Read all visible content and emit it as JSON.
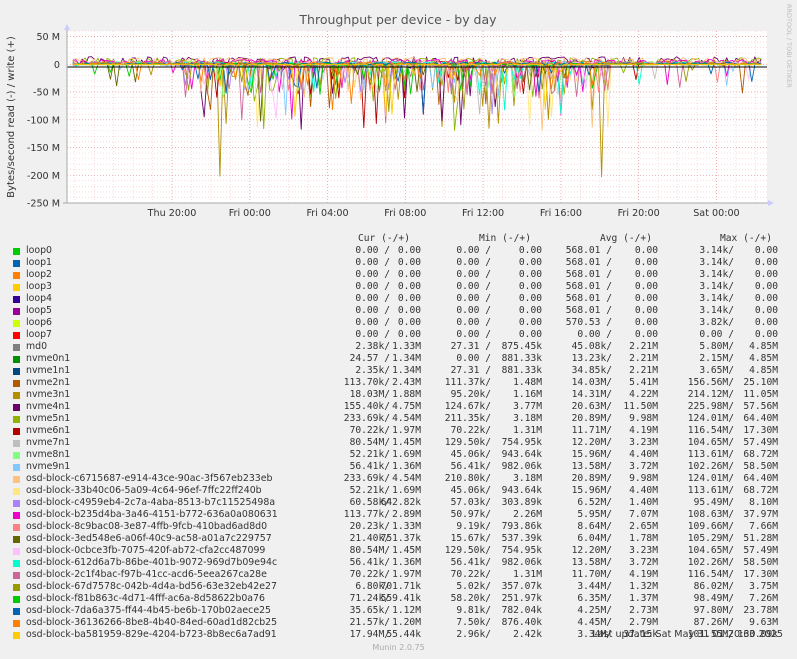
{
  "chart_data": {
    "type": "line",
    "title": "Throughput per device - by day",
    "ylabel": "Bytes/second read (-) / write (+)",
    "ylim": [
      -250000000,
      60000000
    ],
    "yticks": [
      {
        "v": 50000000,
        "label": "50 M"
      },
      {
        "v": 0,
        "label": "0"
      },
      {
        "v": -50000000,
        "label": "-50 M"
      },
      {
        "v": -100000000,
        "label": "-100 M"
      },
      {
        "v": -150000000,
        "label": "-150 M"
      },
      {
        "v": -200000000,
        "label": "-200 M"
      },
      {
        "v": -250000000,
        "label": "-250 M"
      }
    ],
    "xrange_hours": [
      -5.4,
      30.6
    ],
    "xticks": [
      {
        "h": 0,
        "label": "Thu 20:00"
      },
      {
        "h": 4,
        "label": "Fri 00:00"
      },
      {
        "h": 8,
        "label": "Fri 04:00"
      },
      {
        "h": 12,
        "label": "Fri 08:00"
      },
      {
        "h": 16,
        "label": "Fri 12:00"
      },
      {
        "h": 20,
        "label": "Fri 16:00"
      },
      {
        "h": 24,
        "label": "Fri 20:00"
      },
      {
        "h": 28,
        "label": "Sat 00:00"
      }
    ],
    "grid": true,
    "legend_position": "bottom",
    "legend_headers": {
      "cur": "Cur (-/+)",
      "min": "Min (-/+)",
      "avg": "Avg (-/+)",
      "max": "Max (-/+)"
    },
    "series": [
      {
        "name": "loop0",
        "color": "#00cc00",
        "cur": [
          "0.00 /",
          "0.00"
        ],
        "min": [
          "0.00 /",
          "0.00"
        ],
        "avg": [
          "568.01 /",
          "0.00"
        ],
        "max": [
          "3.14k/",
          "0.00"
        ]
      },
      {
        "name": "loop1",
        "color": "#0066b3",
        "cur": [
          "0.00 /",
          "0.00"
        ],
        "min": [
          "0.00 /",
          "0.00"
        ],
        "avg": [
          "568.01 /",
          "0.00"
        ],
        "max": [
          "3.14k/",
          "0.00"
        ]
      },
      {
        "name": "loop2",
        "color": "#ff8000",
        "cur": [
          "0.00 /",
          "0.00"
        ],
        "min": [
          "0.00 /",
          "0.00"
        ],
        "avg": [
          "568.01 /",
          "0.00"
        ],
        "max": [
          "3.14k/",
          "0.00"
        ]
      },
      {
        "name": "loop3",
        "color": "#ffcc00",
        "cur": [
          "0.00 /",
          "0.00"
        ],
        "min": [
          "0.00 /",
          "0.00"
        ],
        "avg": [
          "568.01 /",
          "0.00"
        ],
        "max": [
          "3.14k/",
          "0.00"
        ]
      },
      {
        "name": "loop4",
        "color": "#330099",
        "cur": [
          "0.00 /",
          "0.00"
        ],
        "min": [
          "0.00 /",
          "0.00"
        ],
        "avg": [
          "568.01 /",
          "0.00"
        ],
        "max": [
          "3.14k/",
          "0.00"
        ]
      },
      {
        "name": "loop5",
        "color": "#990099",
        "cur": [
          "0.00 /",
          "0.00"
        ],
        "min": [
          "0.00 /",
          "0.00"
        ],
        "avg": [
          "568.01 /",
          "0.00"
        ],
        "max": [
          "3.14k/",
          "0.00"
        ]
      },
      {
        "name": "loop6",
        "color": "#ccff00",
        "cur": [
          "0.00 /",
          "0.00"
        ],
        "min": [
          "0.00 /",
          "0.00"
        ],
        "avg": [
          "570.53 /",
          "0.00"
        ],
        "max": [
          "3.82k/",
          "0.00"
        ]
      },
      {
        "name": "loop7",
        "color": "#ff0000",
        "cur": [
          "0.00 /",
          "0.00"
        ],
        "min": [
          "0.00 /",
          "0.00"
        ],
        "avg": [
          "0.00 /",
          "0.00"
        ],
        "max": [
          "0.00 /",
          "0.00"
        ]
      },
      {
        "name": "md0",
        "color": "#808080",
        "cur": [
          "2.38k/",
          "1.33M"
        ],
        "min": [
          "27.31 /",
          "875.45k"
        ],
        "avg": [
          "45.08k/",
          "2.21M"
        ],
        "max": [
          "5.80M/",
          "4.85M"
        ]
      },
      {
        "name": "nvme0n1",
        "color": "#008f00",
        "cur": [
          "24.57 /",
          "1.34M"
        ],
        "min": [
          "0.00 /",
          "881.33k"
        ],
        "avg": [
          "13.23k/",
          "2.21M"
        ],
        "max": [
          "2.15M/",
          "4.85M"
        ]
      },
      {
        "name": "nvme1n1",
        "color": "#00487d",
        "cur": [
          "2.35k/",
          "1.34M"
        ],
        "min": [
          "27.31 /",
          "881.33k"
        ],
        "avg": [
          "34.85k/",
          "2.21M"
        ],
        "max": [
          "3.65M/",
          "4.85M"
        ]
      },
      {
        "name": "nvme2n1",
        "color": "#b35a00",
        "cur": [
          "113.70k/",
          "2.43M"
        ],
        "min": [
          "111.37k/",
          "1.48M"
        ],
        "avg": [
          "14.03M/",
          "5.41M"
        ],
        "max": [
          "156.56M/",
          "25.10M"
        ]
      },
      {
        "name": "nvme3n1",
        "color": "#b38f00",
        "cur": [
          "18.03M/",
          "1.88M"
        ],
        "min": [
          "95.20k/",
          "1.16M"
        ],
        "avg": [
          "14.31M/",
          "4.22M"
        ],
        "max": [
          "214.12M/",
          "11.05M"
        ]
      },
      {
        "name": "nvme4n1",
        "color": "#6b006b",
        "cur": [
          "155.40k/",
          "4.75M"
        ],
        "min": [
          "124.67k/",
          "3.77M"
        ],
        "avg": [
          "20.63M/",
          "11.50M"
        ],
        "max": [
          "225.98M/",
          "57.56M"
        ]
      },
      {
        "name": "nvme5n1",
        "color": "#8fb300",
        "cur": [
          "233.69k/",
          "4.54M"
        ],
        "min": [
          "211.35k/",
          "3.18M"
        ],
        "avg": [
          "20.89M/",
          "9.98M"
        ],
        "max": [
          "124.01M/",
          "64.40M"
        ]
      },
      {
        "name": "nvme6n1",
        "color": "#b30000",
        "cur": [
          "70.22k/",
          "1.97M"
        ],
        "min": [
          "70.22k/",
          "1.31M"
        ],
        "avg": [
          "11.71M/",
          "4.19M"
        ],
        "max": [
          "116.54M/",
          "17.30M"
        ]
      },
      {
        "name": "nvme7n1",
        "color": "#bebebe",
        "cur": [
          "80.54M/",
          "1.45M"
        ],
        "min": [
          "129.50k/",
          "754.95k"
        ],
        "avg": [
          "12.20M/",
          "3.23M"
        ],
        "max": [
          "104.65M/",
          "57.49M"
        ]
      },
      {
        "name": "nvme8n1",
        "color": "#80ff80",
        "cur": [
          "52.21k/",
          "1.69M"
        ],
        "min": [
          "45.06k/",
          "943.64k"
        ],
        "avg": [
          "15.96M/",
          "4.40M"
        ],
        "max": [
          "113.61M/",
          "68.72M"
        ]
      },
      {
        "name": "nvme9n1",
        "color": "#80c9ff",
        "cur": [
          "56.41k/",
          "1.36M"
        ],
        "min": [
          "56.41k/",
          "982.06k"
        ],
        "avg": [
          "13.58M/",
          "3.72M"
        ],
        "max": [
          "102.26M/",
          "58.50M"
        ]
      },
      {
        "name": "osd-block-c6715687-e914-43ce-90ac-3f567eb233eb",
        "color": "#ffc080",
        "cur": [
          "233.69k/",
          "4.54M"
        ],
        "min": [
          "210.80k/",
          "3.18M"
        ],
        "avg": [
          "20.89M/",
          "9.98M"
        ],
        "max": [
          "124.01M/",
          "64.40M"
        ]
      },
      {
        "name": "osd-block-33b40c06-5a09-4c64-96ef-7ffc22ff240b",
        "color": "#ffe680",
        "cur": [
          "52.21k/",
          "1.69M"
        ],
        "min": [
          "45.06k/",
          "943.64k"
        ],
        "avg": [
          "15.96M/",
          "4.40M"
        ],
        "max": [
          "113.61M/",
          "68.72M"
        ]
      },
      {
        "name": "osd-block-c4959eb4-2c7a-4aba-8513-b7c11525498a",
        "color": "#aa80ff",
        "cur": [
          "60.58k/",
          "642.82k"
        ],
        "min": [
          "57.03k/",
          "303.89k"
        ],
        "avg": [
          "6.52M/",
          "1.40M"
        ],
        "max": [
          "95.49M/",
          "8.10M"
        ]
      },
      {
        "name": "osd-block-b235d4ba-3a46-4151-b772-636a0a080631",
        "color": "#ee00cc",
        "cur": [
          "113.77k/",
          "2.89M"
        ],
        "min": [
          "50.97k/",
          "2.26M"
        ],
        "avg": [
          "5.95M/",
          "7.07M"
        ],
        "max": [
          "108.63M/",
          "37.97M"
        ]
      },
      {
        "name": "osd-block-8c9bac08-3e87-4ffb-9fcb-410bad6ad8d0",
        "color": "#ff8080",
        "cur": [
          "20.23k/",
          "1.33M"
        ],
        "min": [
          "9.19k/",
          "793.86k"
        ],
        "avg": [
          "8.64M/",
          "2.65M"
        ],
        "max": [
          "109.66M/",
          "7.66M"
        ]
      },
      {
        "name": "osd-block-3ed548e6-a06f-40c9-ac58-a01a7c229757",
        "color": "#666600",
        "cur": [
          "21.40k/",
          "751.37k"
        ],
        "min": [
          "15.67k/",
          "537.39k"
        ],
        "avg": [
          "6.04M/",
          "1.78M"
        ],
        "max": [
          "105.29M/",
          "51.28M"
        ]
      },
      {
        "name": "osd-block-0cbce3fb-7075-420f-ab72-cfa2cc487099",
        "color": "#ffbfff",
        "cur": [
          "80.54M/",
          "1.45M"
        ],
        "min": [
          "129.50k/",
          "754.95k"
        ],
        "avg": [
          "12.20M/",
          "3.23M"
        ],
        "max": [
          "104.65M/",
          "57.49M"
        ]
      },
      {
        "name": "osd-block-612d6a7b-86be-401b-9072-969d7b09e94c",
        "color": "#00ffcc",
        "cur": [
          "56.41k/",
          "1.36M"
        ],
        "min": [
          "56.41k/",
          "982.06k"
        ],
        "avg": [
          "13.58M/",
          "3.72M"
        ],
        "max": [
          "102.26M/",
          "58.50M"
        ]
      },
      {
        "name": "osd-block-2c1f4bac-f97b-41cc-acd6-5eea267ca28e",
        "color": "#cc6699",
        "cur": [
          "70.22k/",
          "1.97M"
        ],
        "min": [
          "70.22k/",
          "1.31M"
        ],
        "avg": [
          "11.70M/",
          "4.19M"
        ],
        "max": [
          "116.54M/",
          "17.30M"
        ]
      },
      {
        "name": "osd-block-67d7578c-042b-4d4a-bd56-63e32eb42e27",
        "color": "#999900",
        "cur": [
          "6.80k/",
          "701.71k"
        ],
        "min": [
          "5.02k/",
          "357.07k"
        ],
        "avg": [
          "3.44M/",
          "1.32M"
        ],
        "max": [
          "86.02M/",
          "3.75M"
        ]
      },
      {
        "name": "osd-block-f81b863c-4d71-4fff-ac6a-8d58622b0a76",
        "color": "#00cc00",
        "cur": [
          "71.24k/",
          "559.41k"
        ],
        "min": [
          "58.20k/",
          "251.97k"
        ],
        "avg": [
          "6.35M/",
          "1.37M"
        ],
        "max": [
          "98.49M/",
          "7.26M"
        ]
      },
      {
        "name": "osd-block-7da6a375-ff44-4b45-be6b-170b02aece25",
        "color": "#0066b3",
        "cur": [
          "35.65k/",
          "1.12M"
        ],
        "min": [
          "9.81k/",
          "782.04k"
        ],
        "avg": [
          "4.25M/",
          "2.73M"
        ],
        "max": [
          "97.80M/",
          "23.78M"
        ]
      },
      {
        "name": "osd-block-36136266-8be8-4b40-84ed-60ad1d82cb25",
        "color": "#ff8000",
        "cur": [
          "21.57k/",
          "1.20M"
        ],
        "min": [
          "7.50k/",
          "876.40k"
        ],
        "avg": [
          "4.45M/",
          "2.79M"
        ],
        "max": [
          "87.26M/",
          "9.63M"
        ]
      },
      {
        "name": "osd-block-ba581959-829e-4204-b723-8b8ec6a7ad91",
        "color": "#ffcc00",
        "cur": [
          "17.94M/",
          "55.44k"
        ],
        "min": [
          "2.96k/",
          "2.42k"
        ],
        "avg": [
          "3.34M/",
          "37.15k"
        ],
        "max": [
          "101.55M/",
          "163.09k"
        ]
      }
    ]
  },
  "last_update": "Last update: Sat May 31 01:20:30 2025",
  "version": "Munin 2.0.75",
  "watermark": "RRDTOOL / TOBI OETIKER"
}
